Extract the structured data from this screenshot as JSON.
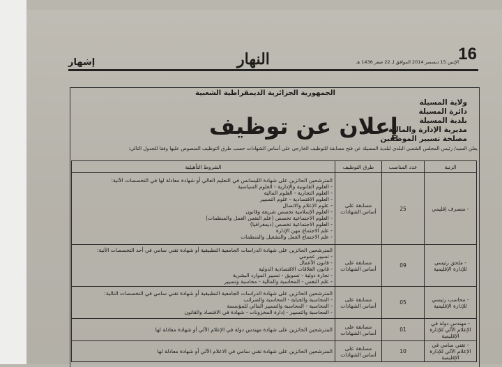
{
  "header": {
    "page_number": "16",
    "date": "الإثنين 15 ديسمبر 2014 الموافق لـ 22 صفر 1436 هـ",
    "newspaper": "النهار",
    "section": "إشهار"
  },
  "ad": {
    "republic": "الجمهورية الجزائرية الديمقراطية الشعبية",
    "admin_lines": [
      "ولاية المسيلة",
      "دائرة المسيلة",
      "بلدية المسيلة",
      "مديرية الإدارة والمالية",
      "مصلحة تسيير الموظفين"
    ],
    "title": "إعلان عن توظيف",
    "intro": "يعلن السيد/ رئيس المجلس الشعبي البلدي لبلدية المسيلة عن فتح مسابقة للتوظيف الخارجي على أساس الشهادات حسب طرق التوظيف المنصوص عليها وفقا للجدول التالي:"
  },
  "table": {
    "headers": [
      "الرتبة",
      "عدد المناصب",
      "طرق التوظيف",
      "الشروط التأهيلية"
    ],
    "rows": [
      {
        "rank": "- متصرف إقليمي",
        "count": "25",
        "method": "مسابقة على أساس الشهادات",
        "conditions": [
          "المترشحين الحائزين على شهادة الليسانس في التعليم العالي أو شهادة معادلة لها في التخصصات الآتية:",
          "- العلوم القانونية والإدارية - العلوم السياسية",
          "- العلوم التجارية - العلوم المالية",
          "- العلوم الاقتصادية - علوم التسيير",
          "- علوم الإعلام والاتصال",
          "- العلوم الإسلامية تخصص شريعة وقانون",
          "- العلوم الاجتماعية تخصص (علم النفس العمل والمنظمات)",
          "- العلوم الاجتماعية تخصص (ديمغرافيا)",
          "- علم الاجتماع مهن الإدارة",
          "- علم الاجتماع العمل والتشغيل والمنظمات"
        ]
      },
      {
        "rank": "- ملحق رئيسي للإدارة الإقليمية",
        "count": "09",
        "method": "مسابقة على أساس الشهادات",
        "conditions": [
          "المترشحين الحائزين على شهادة الدراسات الجامعية التطبيقية أو شهادة تقني سامي في أحد التخصصات الآتية:",
          "- تسيير عمومي",
          "- قانون الأعمال",
          "- قانون العلاقات الاقتصادية الدولية",
          "- تجارة دولية - تسويق - تسيير الموارد البشرية",
          "- علم النفس - المحاسبة والمالية - محاسبة وتسيير"
        ]
      },
      {
        "rank": "- محاسب رئيسي للإدارة الإقليمية",
        "count": "05",
        "method": "مسابقة على أساس الشهادات",
        "conditions": [
          "المترشحين الحائزين على شهادة الدراسات الجامعية التطبيقية أو شهادة تقني سامي في التخصصات التالية:",
          "- المحاسبة والجباية - المحاسبة والضرائب",
          "- المحاسبة - المحاسبة والتسيير المالي للمؤسسة",
          "- المحاسبة والتسيير - إدارة المخزونات - شهادة في الاقتصاد والقانون"
        ]
      },
      {
        "rank": "- مهندس دولة في الإعلام الآلي للإدارة الإقليمية",
        "count": "01",
        "method": "مسابقة على أساس الشهادات",
        "conditions": [
          "المترشحين الحائزين على شهادة مهندس دولة في الإعلام الآلي أو شهادة معادلة لها"
        ]
      },
      {
        "rank": "- تقني سامي في الإعلام الآلي للإدارة الإقليمية",
        "count": "10",
        "method": "مسابقة على أساس الشهادات",
        "conditions": [
          "المترشحين الحائزين على شهادة تقني سامي في الاعلام الآلي أو شهادة معادلة لها"
        ]
      }
    ]
  }
}
